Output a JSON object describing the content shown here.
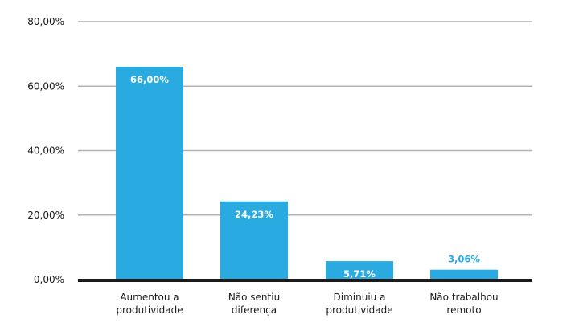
{
  "chart_data": {
    "type": "bar",
    "categories": [
      [
        "Aumentou a",
        "produtividade"
      ],
      [
        "Não sentiu",
        "diferença"
      ],
      [
        "Diminuiu a",
        "produtividade"
      ],
      [
        "Não trabalhou",
        "remoto"
      ]
    ],
    "values": [
      66.0,
      24.23,
      5.71,
      3.06
    ],
    "data_labels": [
      "66,00%",
      "24,23%",
      "5,71%",
      "3,06%"
    ],
    "y_ticks": [
      0,
      20,
      40,
      60,
      80
    ],
    "y_tick_labels": [
      "0,00%",
      "20,00%",
      "40,00%",
      "60,00%",
      "80,00%"
    ],
    "ylim": [
      0,
      80
    ],
    "grid": true,
    "title": "",
    "xlabel": "",
    "ylabel": "",
    "colors": {
      "bar": "#29abe2",
      "grid": "#b3b3b3",
      "baseline": "#1a1a1a",
      "label_inside": "#ffffff",
      "label_outside": "#29abe2"
    }
  }
}
